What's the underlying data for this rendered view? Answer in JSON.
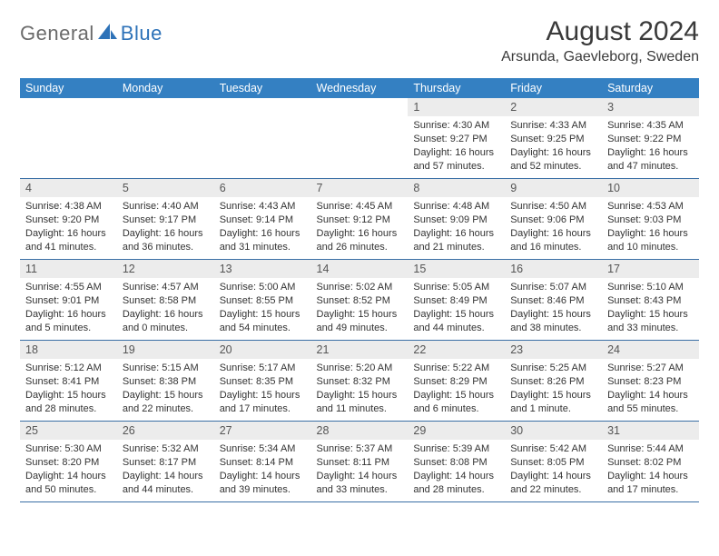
{
  "logo": {
    "part1": "General",
    "part2": "Blue",
    "logo_fill": "#2d72b8"
  },
  "title": "August 2024",
  "location": "Arsunda, Gaevleborg, Sweden",
  "colors": {
    "header_bg": "#3480c2",
    "header_fg": "#ffffff",
    "daynum_bg": "#ececec",
    "row_border": "#3a6fa5"
  },
  "weekdays": [
    "Sunday",
    "Monday",
    "Tuesday",
    "Wednesday",
    "Thursday",
    "Friday",
    "Saturday"
  ],
  "leading_blanks": 4,
  "days": [
    {
      "n": 1,
      "sunrise": "4:30 AM",
      "sunset": "9:27 PM",
      "daylight": "16 hours and 57 minutes."
    },
    {
      "n": 2,
      "sunrise": "4:33 AM",
      "sunset": "9:25 PM",
      "daylight": "16 hours and 52 minutes."
    },
    {
      "n": 3,
      "sunrise": "4:35 AM",
      "sunset": "9:22 PM",
      "daylight": "16 hours and 47 minutes."
    },
    {
      "n": 4,
      "sunrise": "4:38 AM",
      "sunset": "9:20 PM",
      "daylight": "16 hours and 41 minutes."
    },
    {
      "n": 5,
      "sunrise": "4:40 AM",
      "sunset": "9:17 PM",
      "daylight": "16 hours and 36 minutes."
    },
    {
      "n": 6,
      "sunrise": "4:43 AM",
      "sunset": "9:14 PM",
      "daylight": "16 hours and 31 minutes."
    },
    {
      "n": 7,
      "sunrise": "4:45 AM",
      "sunset": "9:12 PM",
      "daylight": "16 hours and 26 minutes."
    },
    {
      "n": 8,
      "sunrise": "4:48 AM",
      "sunset": "9:09 PM",
      "daylight": "16 hours and 21 minutes."
    },
    {
      "n": 9,
      "sunrise": "4:50 AM",
      "sunset": "9:06 PM",
      "daylight": "16 hours and 16 minutes."
    },
    {
      "n": 10,
      "sunrise": "4:53 AM",
      "sunset": "9:03 PM",
      "daylight": "16 hours and 10 minutes."
    },
    {
      "n": 11,
      "sunrise": "4:55 AM",
      "sunset": "9:01 PM",
      "daylight": "16 hours and 5 minutes."
    },
    {
      "n": 12,
      "sunrise": "4:57 AM",
      "sunset": "8:58 PM",
      "daylight": "16 hours and 0 minutes."
    },
    {
      "n": 13,
      "sunrise": "5:00 AM",
      "sunset": "8:55 PM",
      "daylight": "15 hours and 54 minutes."
    },
    {
      "n": 14,
      "sunrise": "5:02 AM",
      "sunset": "8:52 PM",
      "daylight": "15 hours and 49 minutes."
    },
    {
      "n": 15,
      "sunrise": "5:05 AM",
      "sunset": "8:49 PM",
      "daylight": "15 hours and 44 minutes."
    },
    {
      "n": 16,
      "sunrise": "5:07 AM",
      "sunset": "8:46 PM",
      "daylight": "15 hours and 38 minutes."
    },
    {
      "n": 17,
      "sunrise": "5:10 AM",
      "sunset": "8:43 PM",
      "daylight": "15 hours and 33 minutes."
    },
    {
      "n": 18,
      "sunrise": "5:12 AM",
      "sunset": "8:41 PM",
      "daylight": "15 hours and 28 minutes."
    },
    {
      "n": 19,
      "sunrise": "5:15 AM",
      "sunset": "8:38 PM",
      "daylight": "15 hours and 22 minutes."
    },
    {
      "n": 20,
      "sunrise": "5:17 AM",
      "sunset": "8:35 PM",
      "daylight": "15 hours and 17 minutes."
    },
    {
      "n": 21,
      "sunrise": "5:20 AM",
      "sunset": "8:32 PM",
      "daylight": "15 hours and 11 minutes."
    },
    {
      "n": 22,
      "sunrise": "5:22 AM",
      "sunset": "8:29 PM",
      "daylight": "15 hours and 6 minutes."
    },
    {
      "n": 23,
      "sunrise": "5:25 AM",
      "sunset": "8:26 PM",
      "daylight": "15 hours and 1 minute."
    },
    {
      "n": 24,
      "sunrise": "5:27 AM",
      "sunset": "8:23 PM",
      "daylight": "14 hours and 55 minutes."
    },
    {
      "n": 25,
      "sunrise": "5:30 AM",
      "sunset": "8:20 PM",
      "daylight": "14 hours and 50 minutes."
    },
    {
      "n": 26,
      "sunrise": "5:32 AM",
      "sunset": "8:17 PM",
      "daylight": "14 hours and 44 minutes."
    },
    {
      "n": 27,
      "sunrise": "5:34 AM",
      "sunset": "8:14 PM",
      "daylight": "14 hours and 39 minutes."
    },
    {
      "n": 28,
      "sunrise": "5:37 AM",
      "sunset": "8:11 PM",
      "daylight": "14 hours and 33 minutes."
    },
    {
      "n": 29,
      "sunrise": "5:39 AM",
      "sunset": "8:08 PM",
      "daylight": "14 hours and 28 minutes."
    },
    {
      "n": 30,
      "sunrise": "5:42 AM",
      "sunset": "8:05 PM",
      "daylight": "14 hours and 22 minutes."
    },
    {
      "n": 31,
      "sunrise": "5:44 AM",
      "sunset": "8:02 PM",
      "daylight": "14 hours and 17 minutes."
    }
  ],
  "labels": {
    "sunrise": "Sunrise: ",
    "sunset": "Sunset: ",
    "daylight": "Daylight: "
  }
}
